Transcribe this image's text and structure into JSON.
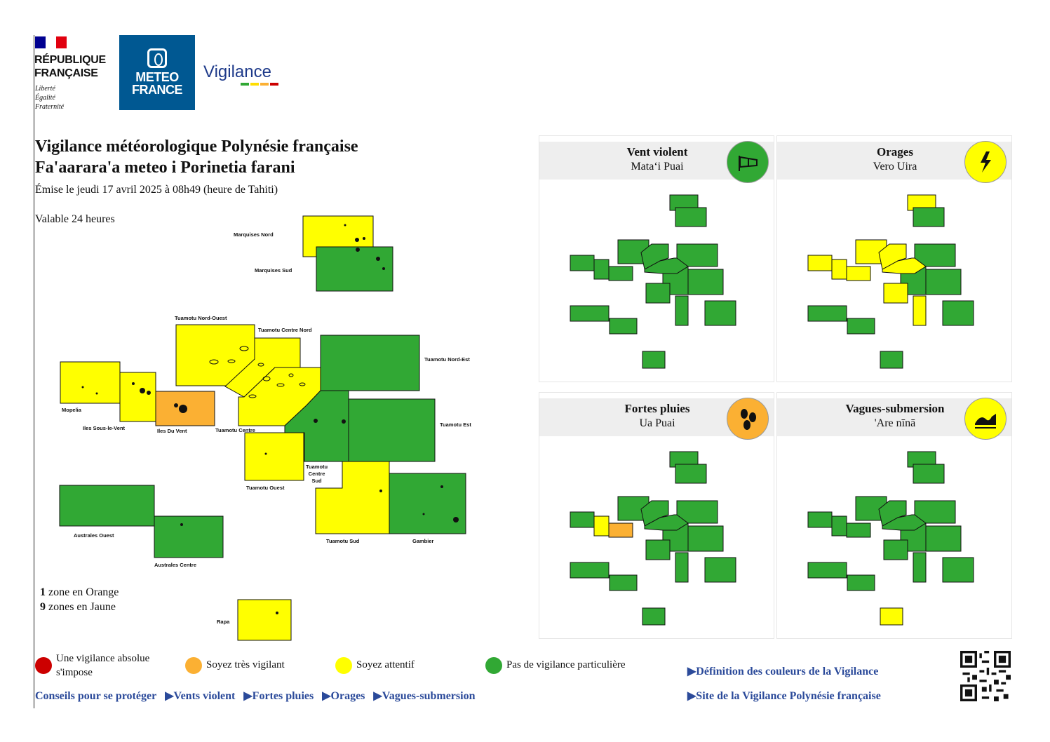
{
  "header": {
    "republique": [
      "RÉPUBLIQUE",
      "FRANÇAISE"
    ],
    "motto": [
      "Liberté",
      "Égalité",
      "Fraternité"
    ],
    "meteo": [
      "METEO",
      "FRANCE"
    ],
    "vigilance_logo": "Vigilance"
  },
  "title": {
    "line1": "Vigilance météorologique Polynésie française",
    "line2": "Fa'aarara'a meteo i Porinetia farani",
    "emise": "Émise le jeudi 17 avril 2025 à 08h49 (heure de Tahiti)",
    "valable": "Valable 24 heures"
  },
  "colors": {
    "green": "#31a834",
    "yellow": "#ffff00",
    "orange": "#fbb033",
    "red": "#cc0000"
  },
  "map": {
    "zones": [
      {
        "name": "Marquises Nord",
        "level": "yellow"
      },
      {
        "name": "Marquises Sud",
        "level": "green"
      },
      {
        "name": "Tuamotu Nord-Ouest",
        "level": "yellow"
      },
      {
        "name": "Tuamotu Centre Nord",
        "level": "yellow"
      },
      {
        "name": "Tuamotu Nord-Est",
        "level": "green"
      },
      {
        "name": "Mopelia",
        "level": "yellow"
      },
      {
        "name": "Iles Sous-le-Vent",
        "level": "yellow"
      },
      {
        "name": "Iles Du Vent",
        "level": "orange"
      },
      {
        "name": "Tuamotu Centre",
        "level": "yellow"
      },
      {
        "name": "Tuamotu Est",
        "level": "green"
      },
      {
        "name": "Tuamotu Centre Sud",
        "level": "green"
      },
      {
        "name": "Tuamotu Ouest",
        "level": "yellow"
      },
      {
        "name": "Australes Ouest",
        "level": "green"
      },
      {
        "name": "Australes Centre",
        "level": "green"
      },
      {
        "name": "Tuamotu Sud",
        "level": "yellow"
      },
      {
        "name": "Gambier",
        "level": "green"
      },
      {
        "name": "Rapa",
        "level": "yellow"
      }
    ],
    "labels": {
      "marquises_nord": "Marquises Nord",
      "marquises_sud": "Marquises Sud",
      "tuamotu_no": "Tuamotu Nord-Ouest",
      "tuamotu_cn": "Tuamotu Centre Nord",
      "tuamotu_ne": "Tuamotu Nord-Est",
      "mopelia": "Mopelia",
      "isv": "Iles Sous-le-Vent",
      "idv": "Iles Du Vent",
      "tuamotu_c": "Tuamotu Centre",
      "tuamotu_e": "Tuamotu Est",
      "tuamotu_cs1": "Tuamotu",
      "tuamotu_cs2": "Centre",
      "tuamotu_cs3": "Sud",
      "tuamotu_o": "Tuamotu Ouest",
      "australes_o": "Australes Ouest",
      "australes_c": "Australes Centre",
      "tuamotu_s": "Tuamotu Sud",
      "gambier": "Gambier",
      "rapa": "Rapa"
    }
  },
  "counts": {
    "orange_n": "1",
    "orange_text": "zone en Orange",
    "yellow_n": "9",
    "yellow_text": "zones en Jaune"
  },
  "panels": [
    {
      "title": "Vent violent",
      "subtitle": "Mataʻi Puai",
      "icon": "wind-sock-icon",
      "icon_color": "#31a834"
    },
    {
      "title": "Orages",
      "subtitle": "Vero Uira",
      "icon": "lightning-icon",
      "icon_color": "#ffff00"
    },
    {
      "title": "Fortes pluies",
      "subtitle": "Ua Puai",
      "icon": "rain-drops-icon",
      "icon_color": "#fbb033"
    },
    {
      "title": "Vagues-submersion",
      "subtitle": "'Are nīnā",
      "icon": "wave-icon",
      "icon_color": "#ffff00"
    }
  ],
  "legend": {
    "red": "Une vigilance absolue s'impose",
    "orange": "Soyez très vigilant",
    "yellow": "Soyez attentif",
    "green": "Pas de vigilance particulière"
  },
  "links": {
    "conseils": "Conseils pour se protéger",
    "vents": "▶Vents violent",
    "pluies": "▶Fortes pluies",
    "orages": "▶Orages",
    "vagues": "▶Vagues-submersion",
    "definition": "▶Définition des couleurs de la Vigilance",
    "site": "▶Site de la Vigilance Polynésie française"
  }
}
